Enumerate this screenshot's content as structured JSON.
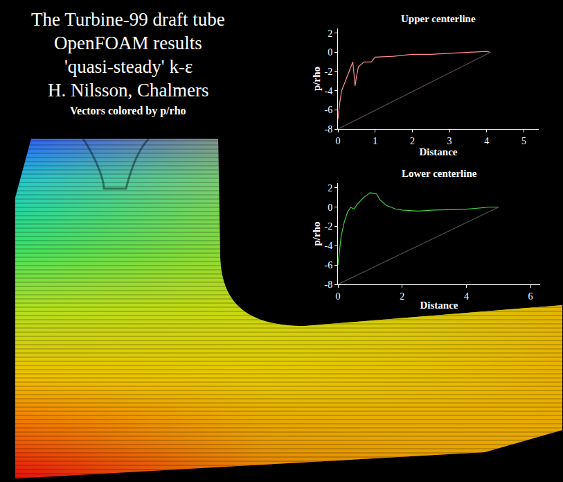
{
  "title": [
    "The Turbine-99 draft tube",
    "OpenFOAM results",
    "'quasi-steady' k-ε",
    "H. Nilsson, Chalmers"
  ],
  "subtitle": "Vectors colored by p/rho",
  "chart_data": [
    {
      "type": "line",
      "title": "Upper centerline",
      "x_label": "Distance",
      "y_label": "p/rho",
      "xlim": [
        0,
        5.4
      ],
      "xticks": [
        0,
        1,
        2,
        3,
        4,
        5
      ],
      "ylim": [
        -8,
        2.5
      ],
      "yticks": [
        -8,
        -6,
        -4,
        -2,
        0,
        2
      ],
      "grid": false,
      "series": [
        {
          "color": "#ff8c8c",
          "line_style": "solid",
          "x": [
            0,
            0.05,
            0.1,
            0.2,
            0.3,
            0.35,
            0.4,
            0.43,
            0.46,
            0.5,
            0.55,
            0.7,
            0.9,
            1.0,
            1.5,
            2.0,
            2.5,
            3.0,
            3.5,
            4.0,
            4.1
          ],
          "values": [
            -7,
            -5.2,
            -4,
            -3,
            -2,
            -1.5,
            -1,
            -2.2,
            -3.5,
            -2.5,
            -1.5,
            -1,
            -1,
            -0.5,
            -0.4,
            -0.2,
            -0.2,
            -0.1,
            0,
            0.1,
            0
          ]
        },
        {
          "color": "#5a4a4a",
          "line_style": "solid",
          "x": [
            0,
            4.1
          ],
          "values": [
            -8,
            0
          ]
        }
      ]
    },
    {
      "type": "line",
      "title": "Lower centerline",
      "x_label": "Distance",
      "y_label": "p/rho",
      "xlim": [
        0,
        6.3
      ],
      "xticks": [
        0,
        2,
        4,
        6
      ],
      "ylim": [
        -8,
        2.5
      ],
      "yticks": [
        -8,
        -6,
        -4,
        -2,
        0,
        2
      ],
      "grid": false,
      "series": [
        {
          "color": "#40d040",
          "line_style": "solid",
          "x": [
            0,
            0.1,
            0.2,
            0.3,
            0.4,
            0.5,
            0.6,
            0.8,
            1.0,
            1.2,
            1.3,
            1.5,
            1.8,
            2.0,
            2.5,
            3.0,
            4.0,
            4.7,
            5.0
          ],
          "values": [
            -6,
            -3,
            -1.5,
            -0.5,
            0,
            -0.2,
            0.3,
            1,
            1.5,
            1.4,
            0.8,
            0.2,
            -0.2,
            -0.3,
            -0.4,
            -0.3,
            -0.2,
            0,
            0
          ]
        },
        {
          "color": "#4a5a4a",
          "line_style": "solid",
          "x": [
            0,
            5.0
          ],
          "values": [
            -8,
            0
          ]
        }
      ]
    }
  ]
}
